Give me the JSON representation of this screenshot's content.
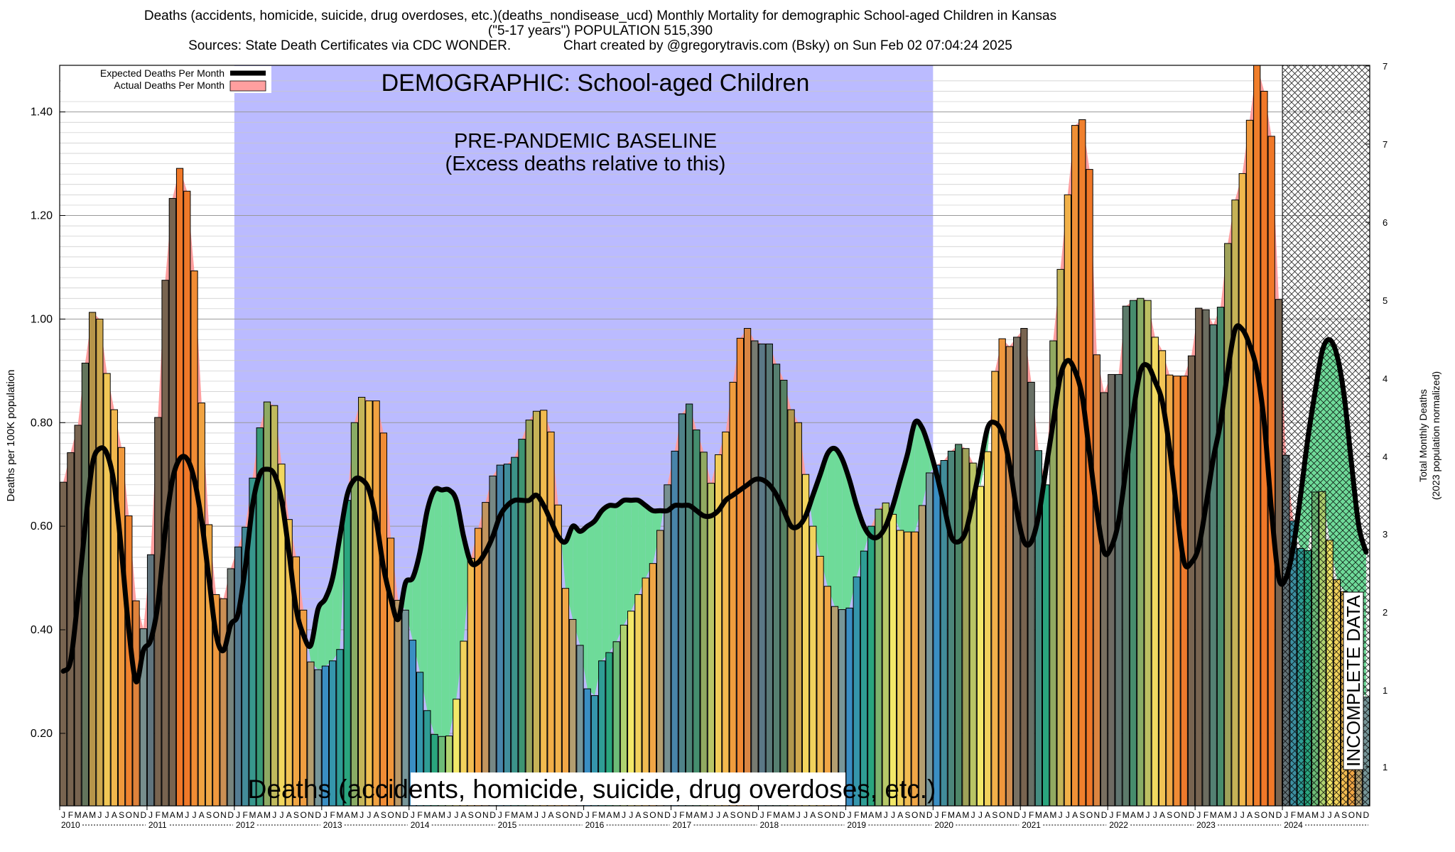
{
  "header": {
    "line1": "Deaths (accidents, homicide, suicide, drug overdoses, etc.)(deaths_nondisease_ucd) Monthly Mortality for demographic School-aged Children in Kansas",
    "line2": "(\"5-17 years\") POPULATION 515,390",
    "line3": "Sources: State Death Certificates via CDC WONDER.              Chart created by @gregorytravis.com (Bsky) on Sun Feb 02 07:04:24 2025"
  },
  "chart_data": {
    "type": "bar",
    "demographic_label": "DEMOGRAPHIC: School-aged Children",
    "baseline_label_1": "PRE-PANDEMIC BASELINE",
    "baseline_label_2": "(Excess deaths relative to this)",
    "bottom_label": "Deaths (accidents, homicide, suicide, drug overdoses, etc.)",
    "incomplete_label": "INCOMPLETE DATA",
    "ylabel_left": "Deaths per 100K population",
    "ylabel_right_1": "Total Monthly Deaths",
    "ylabel_right_2": "(2023 population normalized)",
    "ylim": [
      0.06,
      1.49
    ],
    "yticks_left": [
      "0.20",
      "0.40",
      "0.60",
      "0.80",
      "1.00",
      "1.20",
      "1.40"
    ],
    "yticks_right": [
      "1",
      "1",
      "2",
      "3",
      "4",
      "4",
      "5",
      "6",
      "7",
      "7"
    ],
    "legend": [
      "Expected Deaths Per Month",
      "Actual Deaths Per Month"
    ],
    "month_letters": [
      "J",
      "F",
      "M",
      "A",
      "M",
      "J",
      "J",
      "A",
      "S",
      "O",
      "N",
      "D"
    ],
    "years": [
      "2010",
      "2011",
      "2012",
      "2013",
      "2014",
      "2015",
      "2016",
      "2017",
      "2018",
      "2019",
      "2020",
      "2021",
      "2022",
      "2023",
      "2024"
    ],
    "baseline_period": [
      "2012-01",
      "2019-12"
    ],
    "incomplete_period": [
      "2024-01",
      "2024-12"
    ],
    "colors": {
      "baseline_bg": "#bbbbff",
      "excess_fill": "#ff9f9f",
      "deficit_fill": "#6edb99",
      "incomplete_green": "#99ff99",
      "expected_line": "#000000",
      "bar_winter": "#3a8ec3",
      "bar_spring": "#2aa57e",
      "bar_summer": "#f2e869",
      "bar_fall": "#f0a646"
    },
    "series": [
      {
        "name": "Actual Deaths Per Month",
        "values": [
          0.685,
          0.742,
          0.795,
          0.915,
          1.013,
          1.0,
          0.895,
          0.825,
          0.752,
          0.62,
          0.456,
          0.402,
          0.545,
          0.81,
          1.075,
          1.233,
          1.291,
          1.247,
          1.093,
          0.838,
          0.603,
          0.468,
          0.46,
          0.518,
          0.56,
          0.598,
          0.693,
          0.79,
          0.84,
          0.833,
          0.72,
          0.613,
          0.541,
          0.438,
          0.338,
          0.323,
          0.33,
          0.34,
          0.362,
          0.65,
          0.8,
          0.849,
          0.842,
          0.842,
          0.78,
          0.577,
          0.457,
          0.438,
          0.38,
          0.318,
          0.244,
          0.198,
          0.194,
          0.195,
          0.266,
          0.378,
          0.538,
          0.596,
          0.646,
          0.697,
          0.718,
          0.72,
          0.733,
          0.768,
          0.805,
          0.822,
          0.824,
          0.782,
          0.641,
          0.48,
          0.42,
          0.37,
          0.286,
          0.273,
          0.34,
          0.356,
          0.377,
          0.409,
          0.436,
          0.468,
          0.5,
          0.528,
          0.592,
          0.68,
          0.745,
          0.817,
          0.836,
          0.786,
          0.743,
          0.683,
          0.738,
          0.782,
          0.878,
          0.963,
          0.982,
          0.958,
          0.952,
          0.952,
          0.913,
          0.882,
          0.825,
          0.8,
          0.7,
          0.6,
          0.542,
          0.484,
          0.445,
          0.439,
          0.442,
          0.502,
          0.552,
          0.6,
          0.633,
          0.645,
          0.623,
          0.592,
          0.589,
          0.589,
          0.64,
          0.703,
          0.718,
          0.727,
          0.745,
          0.758,
          0.75,
          0.722,
          0.677,
          0.744,
          0.899,
          0.962,
          0.947,
          0.965,
          0.982,
          0.878,
          0.746,
          0.68,
          0.958,
          1.096,
          1.24,
          1.374,
          1.385,
          1.289,
          0.931,
          0.858,
          0.893,
          0.893,
          1.025,
          1.036,
          1.04,
          1.036,
          0.965,
          0.939,
          0.892,
          0.89,
          0.89,
          0.929,
          1.021,
          1.018,
          0.989,
          1.023,
          1.146,
          1.23,
          1.281,
          1.384,
          1.49,
          1.44,
          1.353,
          1.038,
          0.737,
          0.61,
          0.557,
          0.553,
          0.666,
          0.667,
          0.573,
          0.497,
          0.474,
          0.41,
          0.29,
          0.27
        ]
      },
      {
        "name": "Expected Deaths Per Month",
        "values": [
          0.32,
          0.34,
          0.46,
          0.6,
          0.72,
          0.75,
          0.74,
          0.68,
          0.55,
          0.4,
          0.3,
          0.36,
          0.38,
          0.45,
          0.59,
          0.69,
          0.73,
          0.73,
          0.69,
          0.61,
          0.5,
          0.39,
          0.36,
          0.41,
          0.43,
          0.52,
          0.64,
          0.7,
          0.71,
          0.7,
          0.65,
          0.55,
          0.44,
          0.39,
          0.37,
          0.44,
          0.46,
          0.5,
          0.58,
          0.66,
          0.69,
          0.69,
          0.67,
          0.61,
          0.52,
          0.46,
          0.42,
          0.49,
          0.5,
          0.55,
          0.63,
          0.67,
          0.67,
          0.67,
          0.65,
          0.58,
          0.53,
          0.53,
          0.55,
          0.58,
          0.62,
          0.64,
          0.65,
          0.65,
          0.65,
          0.66,
          0.64,
          0.61,
          0.58,
          0.57,
          0.6,
          0.59,
          0.6,
          0.61,
          0.63,
          0.64,
          0.64,
          0.65,
          0.65,
          0.65,
          0.64,
          0.63,
          0.63,
          0.63,
          0.64,
          0.64,
          0.64,
          0.63,
          0.62,
          0.62,
          0.63,
          0.65,
          0.66,
          0.67,
          0.68,
          0.69,
          0.69,
          0.68,
          0.66,
          0.63,
          0.6,
          0.6,
          0.62,
          0.66,
          0.7,
          0.74,
          0.75,
          0.73,
          0.69,
          0.64,
          0.6,
          0.58,
          0.58,
          0.6,
          0.64,
          0.69,
          0.74,
          0.8,
          0.79,
          0.75,
          0.7,
          0.64,
          0.58,
          0.57,
          0.59,
          0.65,
          0.72,
          0.79,
          0.8,
          0.78,
          0.72,
          0.63,
          0.57,
          0.57,
          0.62,
          0.71,
          0.8,
          0.89,
          0.92,
          0.9,
          0.85,
          0.74,
          0.63,
          0.55,
          0.56,
          0.61,
          0.71,
          0.82,
          0.9,
          0.91,
          0.88,
          0.84,
          0.75,
          0.63,
          0.53,
          0.53,
          0.56,
          0.64,
          0.73,
          0.8,
          0.9,
          0.98,
          0.98,
          0.95,
          0.9,
          0.8,
          0.63,
          0.5,
          0.5,
          0.56,
          0.66,
          0.77,
          0.86,
          0.94,
          0.96,
          0.93,
          0.85,
          0.72,
          0.6,
          0.55
        ]
      }
    ]
  }
}
